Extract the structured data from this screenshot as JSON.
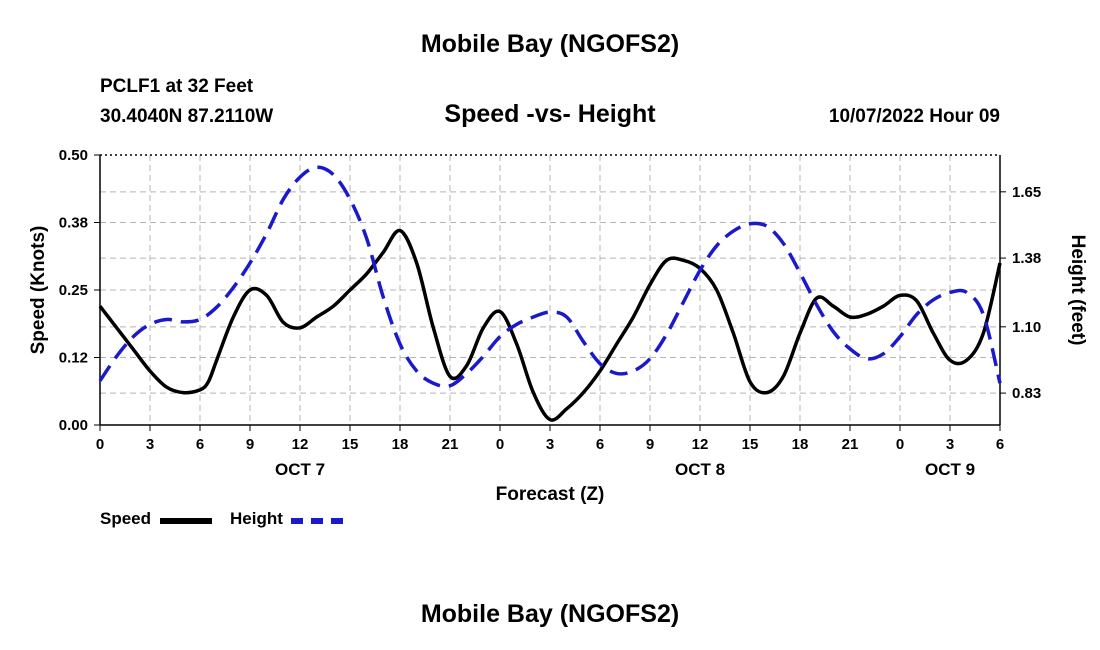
{
  "header": {
    "title": "Mobile Bay (NGOFS2)",
    "station": "PCLF1 at 32 Feet",
    "coords": "30.4040N  87.2110W",
    "subtitle": "Speed -vs- Height",
    "datetime": "10/07/2022 Hour 09",
    "repeat_title": "Mobile Bay (NGOFS2)"
  },
  "legend": {
    "speed_label": "Speed",
    "height_label": "Height"
  },
  "colors": {
    "speed": "#000000",
    "height": "#1a1acc",
    "grid": "#b4b4b4"
  },
  "chart_data": {
    "type": "line",
    "xlabel": "Forecast (Z)",
    "ylabel": "Speed (Knots)",
    "y2label": "Height (feet)",
    "xlim": [
      0,
      54
    ],
    "ylim": [
      0,
      0.5
    ],
    "y2lim": [
      0.7,
      1.8
    ],
    "grid": true,
    "x_ticks": [
      0,
      3,
      6,
      9,
      12,
      15,
      18,
      21,
      24,
      27,
      30,
      33,
      36,
      39,
      42,
      45,
      48,
      51,
      54
    ],
    "x_tick_labels": [
      "0",
      "3",
      "6",
      "9",
      "12",
      "15",
      "18",
      "21",
      "0",
      "3",
      "6",
      "9",
      "12",
      "15",
      "18",
      "21",
      "0",
      "3",
      "6"
    ],
    "y_ticks": [
      0,
      0.125,
      0.25,
      0.375,
      0.5
    ],
    "y_tick_labels": [
      "0.00",
      "0.12",
      "0.25",
      "0.38",
      "0.50"
    ],
    "y2_ticks": [
      0.83,
      1.1,
      1.38,
      1.65
    ],
    "y2_tick_labels": [
      "0.83",
      "1.10",
      "1.38",
      "1.65"
    ],
    "day_labels": [
      {
        "x": 12,
        "label": "OCT 7"
      },
      {
        "x": 36,
        "label": "OCT 8"
      },
      {
        "x": 51,
        "label": "OCT 9"
      }
    ],
    "series": [
      {
        "name": "Speed",
        "axis": "left",
        "style": "solid",
        "points": [
          [
            0,
            0.22
          ],
          [
            1,
            0.18
          ],
          [
            2,
            0.14
          ],
          [
            3,
            0.1
          ],
          [
            4,
            0.07
          ],
          [
            5,
            0.06
          ],
          [
            6,
            0.065
          ],
          [
            6.5,
            0.08
          ],
          [
            7,
            0.12
          ],
          [
            8,
            0.2
          ],
          [
            9,
            0.25
          ],
          [
            10,
            0.24
          ],
          [
            11,
            0.19
          ],
          [
            12,
            0.18
          ],
          [
            13,
            0.2
          ],
          [
            14,
            0.22
          ],
          [
            15,
            0.25
          ],
          [
            16,
            0.28
          ],
          [
            17,
            0.32
          ],
          [
            18,
            0.36
          ],
          [
            19,
            0.3
          ],
          [
            20,
            0.18
          ],
          [
            21,
            0.09
          ],
          [
            22,
            0.11
          ],
          [
            23,
            0.18
          ],
          [
            24,
            0.21
          ],
          [
            25,
            0.15
          ],
          [
            26,
            0.06
          ],
          [
            27,
            0.01
          ],
          [
            28,
            0.03
          ],
          [
            29,
            0.06
          ],
          [
            30,
            0.1
          ],
          [
            31,
            0.15
          ],
          [
            32,
            0.2
          ],
          [
            33,
            0.26
          ],
          [
            34,
            0.305
          ],
          [
            35,
            0.305
          ],
          [
            36,
            0.29
          ],
          [
            37,
            0.25
          ],
          [
            38,
            0.17
          ],
          [
            39,
            0.08
          ],
          [
            40,
            0.06
          ],
          [
            41,
            0.09
          ],
          [
            42,
            0.17
          ],
          [
            43,
            0.235
          ],
          [
            44,
            0.22
          ],
          [
            45,
            0.2
          ],
          [
            46,
            0.205
          ],
          [
            47,
            0.22
          ],
          [
            48,
            0.24
          ],
          [
            49,
            0.23
          ],
          [
            50,
            0.17
          ],
          [
            51,
            0.12
          ],
          [
            52,
            0.12
          ],
          [
            53,
            0.17
          ],
          [
            54,
            0.3
          ]
        ]
      },
      {
        "name": "Height",
        "axis": "right",
        "style": "dashed",
        "points": [
          [
            0,
            0.88
          ],
          [
            1,
            0.98
          ],
          [
            2,
            1.06
          ],
          [
            3,
            1.11
          ],
          [
            4,
            1.13
          ],
          [
            5,
            1.12
          ],
          [
            6,
            1.13
          ],
          [
            7,
            1.18
          ],
          [
            8,
            1.26
          ],
          [
            9,
            1.36
          ],
          [
            10,
            1.48
          ],
          [
            11,
            1.62
          ],
          [
            12,
            1.71
          ],
          [
            13,
            1.75
          ],
          [
            14,
            1.72
          ],
          [
            15,
            1.62
          ],
          [
            16,
            1.46
          ],
          [
            17,
            1.22
          ],
          [
            18,
            1.03
          ],
          [
            19,
            0.92
          ],
          [
            20,
            0.87
          ],
          [
            21,
            0.86
          ],
          [
            22,
            0.91
          ],
          [
            23,
            0.98
          ],
          [
            24,
            1.06
          ],
          [
            25,
            1.11
          ],
          [
            26,
            1.14
          ],
          [
            27,
            1.16
          ],
          [
            28,
            1.14
          ],
          [
            29,
            1.04
          ],
          [
            30,
            0.95
          ],
          [
            31,
            0.91
          ],
          [
            32,
            0.92
          ],
          [
            33,
            0.97
          ],
          [
            34,
            1.07
          ],
          [
            35,
            1.2
          ],
          [
            36,
            1.33
          ],
          [
            37,
            1.43
          ],
          [
            38,
            1.49
          ],
          [
            39,
            1.52
          ],
          [
            40,
            1.51
          ],
          [
            41,
            1.44
          ],
          [
            42,
            1.32
          ],
          [
            43,
            1.19
          ],
          [
            44,
            1.08
          ],
          [
            45,
            1.01
          ],
          [
            46,
            0.97
          ],
          [
            47,
            0.99
          ],
          [
            48,
            1.06
          ],
          [
            49,
            1.15
          ],
          [
            50,
            1.21
          ],
          [
            51,
            1.24
          ],
          [
            52,
            1.24
          ],
          [
            53,
            1.15
          ],
          [
            54,
            0.87
          ]
        ]
      }
    ]
  }
}
